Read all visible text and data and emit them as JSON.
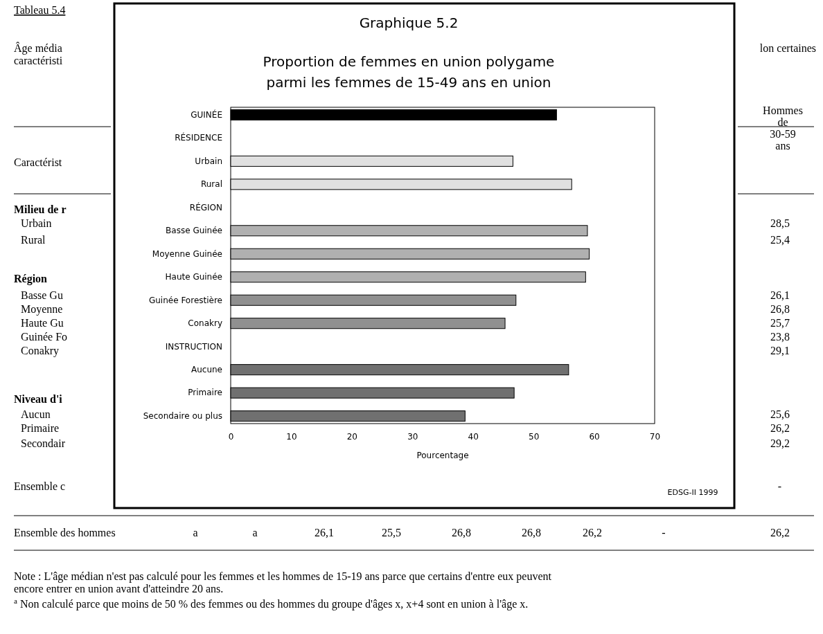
{
  "chart_data": {
    "type": "bar",
    "orientation": "horizontal",
    "title": "Graphique 5.2",
    "subtitle": "Proportion de femmes en union polygame\nparmi les femmes de 15-49 ans en union",
    "xlabel": "Pourcentage",
    "categories": [
      "GUINÉE",
      "RÉSIDENCE",
      "Urbain",
      "Rural",
      "RÉGION",
      "Basse Guinée",
      "Moyenne Guinée",
      "Haute Guinée",
      "Guinée Forestière",
      "Conakry",
      "INSTRUCTION",
      "Aucune",
      "Primaire",
      "Secondaire ou plus"
    ],
    "values": [
      53.8,
      null,
      46.6,
      56.3,
      null,
      58.9,
      59.2,
      58.6,
      47.1,
      45.3,
      null,
      55.8,
      46.8,
      38.7
    ],
    "colors": [
      "#000000",
      null,
      "#e0e0e0",
      "#e0e0e0",
      null,
      "#b0b0b0",
      "#b0b0b0",
      "#b0b0b0",
      "#909090",
      "#909090",
      null,
      "#707070",
      "#707070",
      "#707070"
    ],
    "xlim": [
      0,
      70
    ],
    "xticks": [
      0,
      10,
      20,
      30,
      40,
      50,
      60,
      70
    ],
    "grid": false,
    "annotations": [
      "EDSG-II 1999",
      "Tableau 5.4",
      "Âge média",
      "caractéristi",
      "Caractérist",
      "Milieu de r",
      "Urbain",
      "Rural",
      "Région",
      "Basse Gu",
      "Moyenne",
      "Haute Gu",
      "Guinée Fo",
      "Conakry",
      "Niveau d'i",
      "Aucun",
      "Primaire",
      "Secondair",
      "Ensemble c",
      "lon certaines",
      "Hommes de 30-59 ans",
      "28,5",
      "25,4",
      "26,1",
      "26,8",
      "25,7",
      "23,8",
      "29,1",
      "25,6",
      "26,2",
      "29,2",
      "-",
      "Ensemble des hommes",
      "a",
      "a",
      "26,1",
      "25,5",
      "26,8",
      "26,8",
      "26,2",
      "-",
      "26,2",
      "Note : L'âge médian n'est pas calculé pour les femmes et les hommes de 15-19 ans parce que certains d'entre eux peuvent",
      "encore entrer en union avant d'atteindre 20 ans.",
      "$^{a}$ Non calculé parce que moins de 50 % des femmes ou des hommes du groupe d'âges x, x+4 sont en union à l'âge x."
    ]
  }
}
